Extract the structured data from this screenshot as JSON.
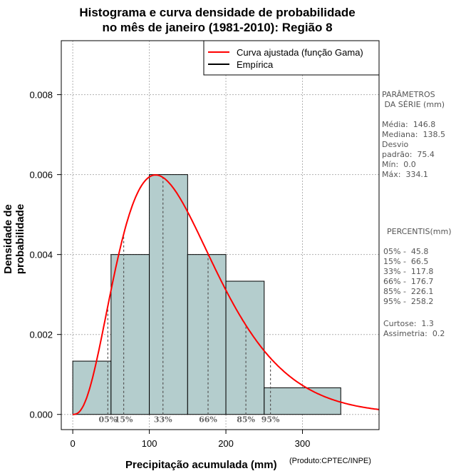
{
  "chart_data": {
    "type": "bar",
    "title_line1": "Histograma e curva densidade de probabilidade",
    "title_line2": "no mês de janeiro (1981-2010): Região 8",
    "xlabel": "Precipitação acumulada (mm)",
    "ylabel": "Densidade de probabilidade",
    "credit": "(Produto:CPTEC/INPE)",
    "xlim": [
      -15,
      400
    ],
    "ylim": [
      -0.00038,
      0.00935
    ],
    "x_ticks": [
      0,
      100,
      200,
      300
    ],
    "y_ticks": [
      0.0,
      0.002,
      0.004,
      0.006,
      0.008
    ],
    "y_tick_labels": [
      "0.000",
      "0.002",
      "0.004",
      "0.006",
      "0.008"
    ],
    "grid": true,
    "legend_position": "top-right",
    "bins": [
      {
        "from": 0,
        "to": 50,
        "density": 0.001333
      },
      {
        "from": 50,
        "to": 100,
        "density": 0.004
      },
      {
        "from": 100,
        "to": 150,
        "density": 0.006
      },
      {
        "from": 150,
        "to": 200,
        "density": 0.004
      },
      {
        "from": 200,
        "to": 250,
        "density": 0.003333
      },
      {
        "from": 250,
        "to": 350,
        "density": 0.000667
      }
    ],
    "series": [
      {
        "name": "Curva ajustada (função Gama)",
        "color": "#ff0000",
        "gamma_shape": 3.8,
        "mean": 146.8
      },
      {
        "name": "Empírica",
        "color": "#000000"
      }
    ],
    "percentiles": [
      {
        "label": "05%",
        "value": 45.8
      },
      {
        "label": "15%",
        "value": 66.5
      },
      {
        "label": "33%",
        "value": 117.8
      },
      {
        "label": "66%",
        "value": 176.7
      },
      {
        "label": "85%",
        "value": 226.1
      },
      {
        "label": "95%",
        "value": 258.2
      }
    ],
    "bar_color": "#b4cdcd"
  },
  "side_panel": {
    "params_title": "PARÂMETROS\n DA SÉRIE (mm)",
    "params_body": "Média:  146.8\nMediana:  138.5\nDesvio\npadrão:  75.4\nMín:  0.0\nMáx:  334.1",
    "percentis_title": "PERCENTIS(mm)",
    "percentis_body": "05% -  45.8\n15% -  66.5\n33% -  117.8\n66% -  176.7\n85% -  226.1\n95% -  258.2",
    "stats_body": "Curtose:  1.3\nAssimetria:  0.2"
  }
}
